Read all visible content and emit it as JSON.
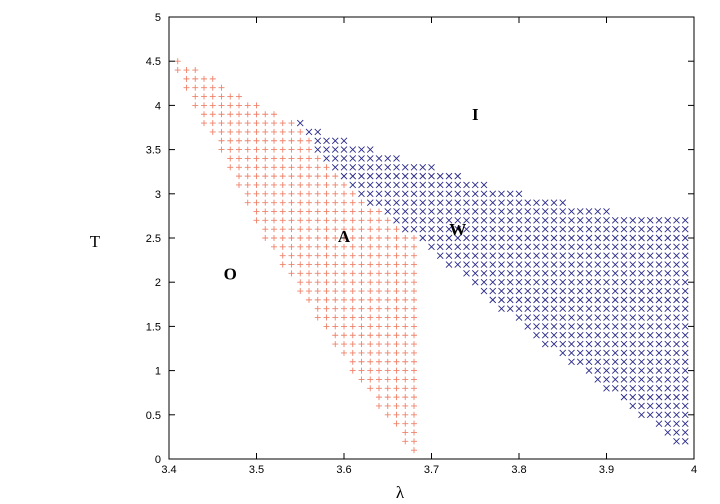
{
  "chart_data": {
    "type": "scatter",
    "title": "",
    "xlabel": "λ",
    "ylabel": "T",
    "xlim": [
      3.4,
      4.0
    ],
    "ylim": [
      0,
      5
    ],
    "x_ticks": [
      "3.4",
      "3.5",
      "3.6",
      "3.7",
      "3.8",
      "3.9",
      "4"
    ],
    "y_ticks": [
      "0",
      "0.5",
      "1",
      "1.5",
      "2",
      "2.5",
      "3",
      "3.5",
      "4",
      "4.5",
      "5"
    ],
    "grid": false,
    "legend": "none",
    "region_labels": [
      {
        "text": "I",
        "x": 3.75,
        "y": 3.9
      },
      {
        "text": "W",
        "x": 3.73,
        "y": 2.6
      },
      {
        "text": "A",
        "x": 3.6,
        "y": 2.52
      },
      {
        "text": "O",
        "x": 3.47,
        "y": 2.1
      }
    ],
    "series": [
      {
        "marker": "plus",
        "color": "#f0826a",
        "region_boundary_lower": [
          [
            3.4,
            4.58
          ],
          [
            3.5,
            2.62
          ],
          [
            3.58,
            1.4
          ],
          [
            3.68,
            0.05
          ]
        ],
        "region_boundary_upper": [
          [
            3.4,
            4.58
          ],
          [
            3.5,
            4.02
          ],
          [
            3.54,
            3.85
          ],
          [
            3.6,
            3.1
          ],
          [
            3.7,
            2.35
          ],
          [
            3.8,
            1.52
          ],
          [
            3.9,
            0.78
          ],
          [
            4.0,
            0.05
          ]
        ]
      },
      {
        "marker": "cross",
        "color": "#2a2a8a",
        "region_boundary_lower": [
          [
            3.54,
            3.85
          ],
          [
            3.6,
            3.1
          ],
          [
            3.7,
            2.35
          ],
          [
            3.8,
            1.52
          ],
          [
            3.9,
            0.78
          ],
          [
            4.0,
            0.05
          ]
        ],
        "region_boundary_upper": [
          [
            3.54,
            3.85
          ],
          [
            3.6,
            3.6
          ],
          [
            3.7,
            3.3
          ],
          [
            3.8,
            3.0
          ],
          [
            3.9,
            2.8
          ],
          [
            3.99,
            2.7
          ]
        ]
      }
    ]
  }
}
